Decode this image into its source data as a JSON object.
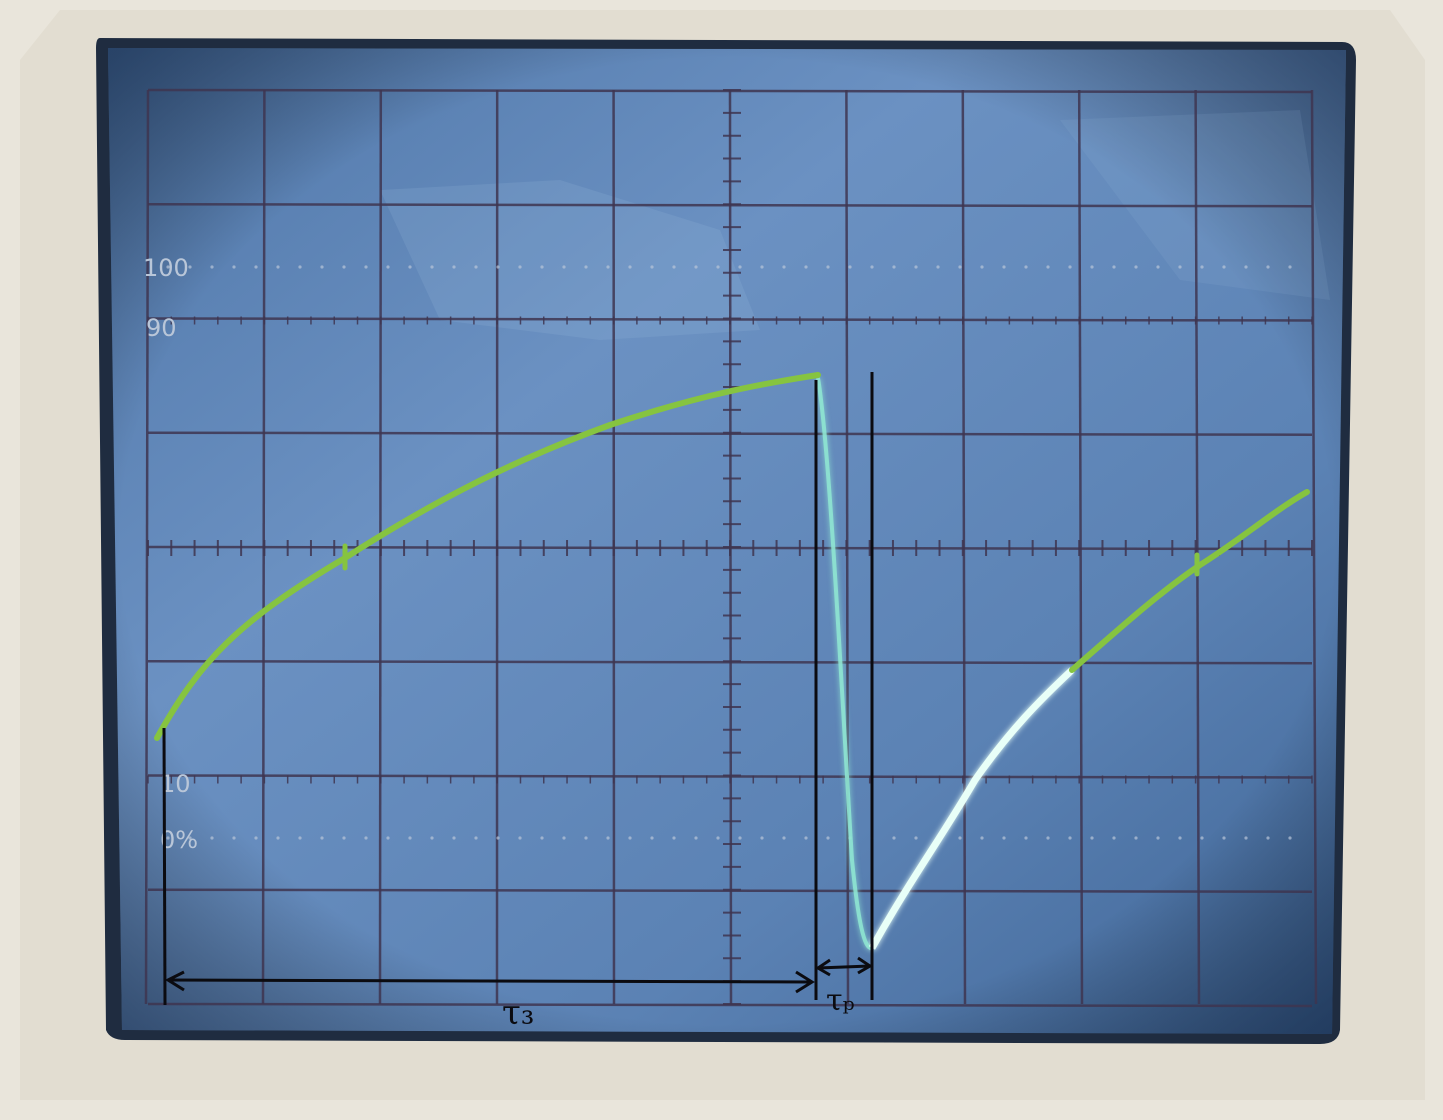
{
  "colors": {
    "bezel": "#e6e1d6",
    "bezel_shadow": "#cfc9bc",
    "screen": "#5f86b8",
    "screen_light": "#7fa3cf",
    "screen_dark": "#2b4a78",
    "grid": "#3e3550",
    "graticule_text": "#b9c6d8",
    "trace_drawn": "#86c440",
    "trace_scope": "#dff8f0",
    "trace_scope_glow": "#8fe8d2",
    "annotation": "#0b0b10"
  },
  "graticule": {
    "label_100": "100",
    "label_90": "90",
    "label_10": "10",
    "label_0": "0%"
  },
  "annotations": {
    "tau3_label": "τ₃",
    "taup_label": "τₚ"
  }
}
